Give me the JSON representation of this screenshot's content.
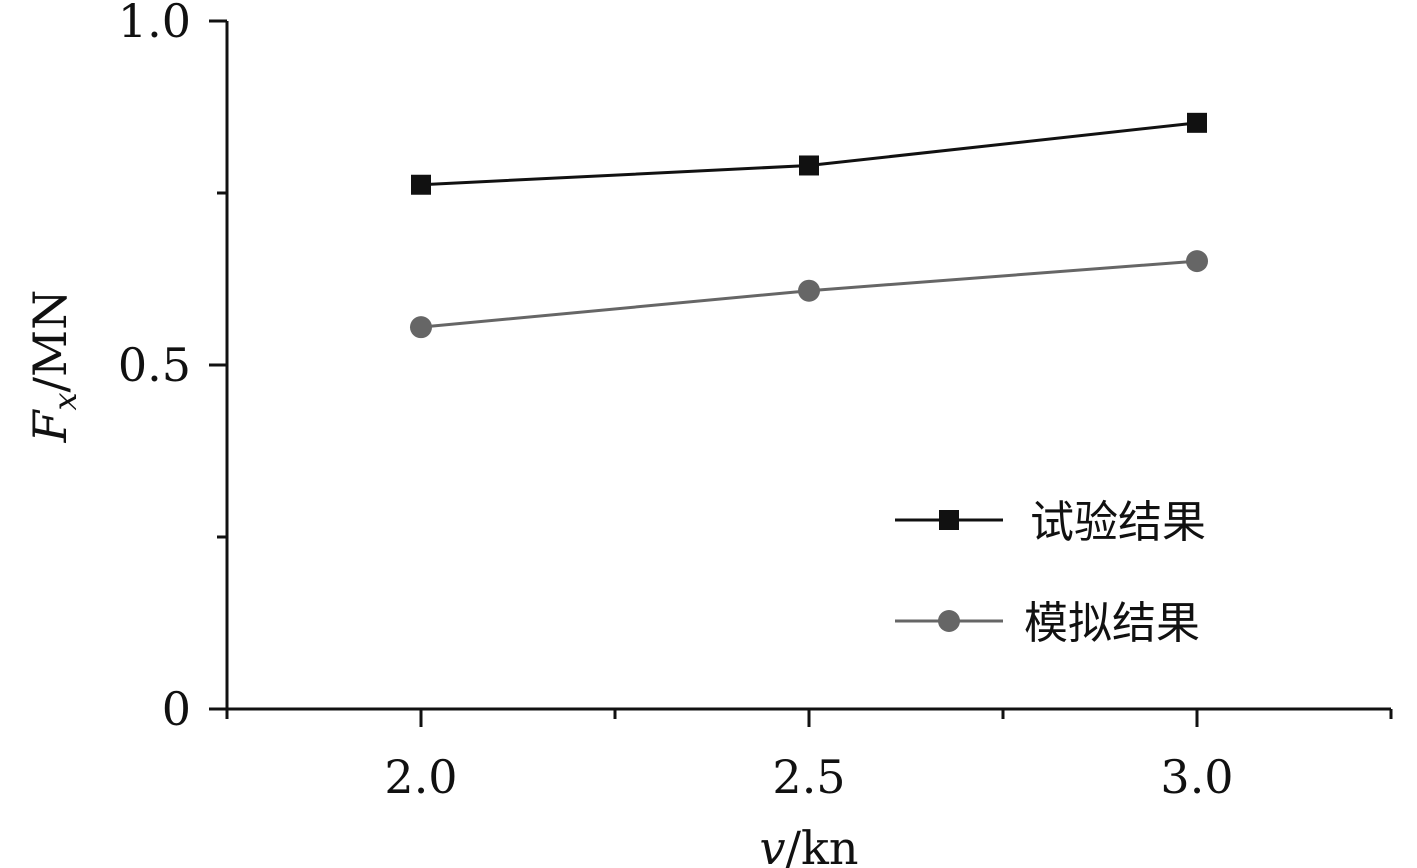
{
  "chart_data": {
    "type": "line",
    "xlabel_var": "v",
    "xlabel_unit": "/kn",
    "ylabel_var": "F",
    "ylabel_sub": "x",
    "ylabel_unit": "/MN",
    "xlim": [
      1.75,
      3.25
    ],
    "ylim": [
      0,
      1.0
    ],
    "xticks": [
      2.0,
      2.5,
      3.0
    ],
    "xtick_labels": [
      "2.0",
      "2.5",
      "3.0"
    ],
    "xminor_ticks": [
      2.25,
      2.75,
      3.25
    ],
    "yticks": [
      0,
      0.5,
      1.0
    ],
    "ytick_labels": [
      "0",
      "0.5",
      "1.0"
    ],
    "yminor_ticks": [
      0.25,
      0.75
    ],
    "legend_position": "lower-right",
    "series": [
      {
        "name": "试验结果",
        "marker": "square",
        "color": "#111111",
        "x": [
          2.0,
          2.5,
          3.0
        ],
        "y": [
          0.762,
          0.79,
          0.852
        ]
      },
      {
        "name": "模拟结果",
        "marker": "circle",
        "color": "#666666",
        "x": [
          2.0,
          2.5,
          3.0
        ],
        "y": [
          0.555,
          0.608,
          0.651
        ]
      }
    ]
  }
}
